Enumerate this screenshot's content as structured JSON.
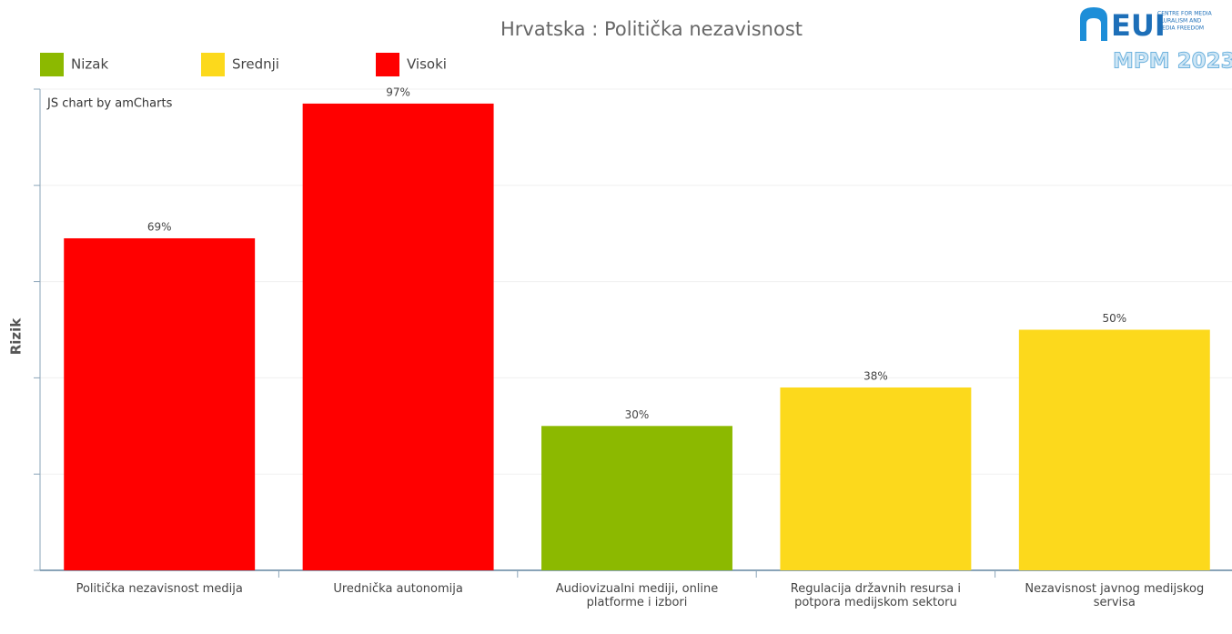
{
  "chart_data": {
    "type": "bar",
    "title": "Hrvatska : Politička nezavisnost",
    "y_label": "Rizik",
    "credit": "JS chart by amCharts",
    "legend": [
      {
        "name": "Nizak",
        "color": "#8cb900"
      },
      {
        "name": "Srednji",
        "color": "#fcd91c"
      },
      {
        "name": "Visoki",
        "color": "#ff0000"
      }
    ],
    "categories": [
      "Politička nezavisnost medija",
      "Urednička autonomija",
      "Audiovizualni mediji, online platforme i izbori",
      "Regulacija državnih resursa i potpora medijskom sektoru",
      "Nezavisnost javnog medijskog servisa"
    ],
    "values": [
      69,
      97,
      30,
      38,
      50
    ],
    "value_labels": [
      "69%",
      "97%",
      "30%",
      "38%",
      "50%"
    ],
    "colors": [
      "#ff0000",
      "#ff0000",
      "#8cb900",
      "#fcd91c",
      "#fcd91c"
    ],
    "ylim": [
      0,
      100
    ],
    "yticks": [
      0,
      20,
      40,
      60,
      80,
      100
    ],
    "grid": true
  },
  "logo": {
    "name": "EUI",
    "lines": [
      "CENTRE FOR MEDIA",
      "PLURALISM AND",
      "MEDIA FREEDOM"
    ],
    "edition": "MPM 2023"
  }
}
